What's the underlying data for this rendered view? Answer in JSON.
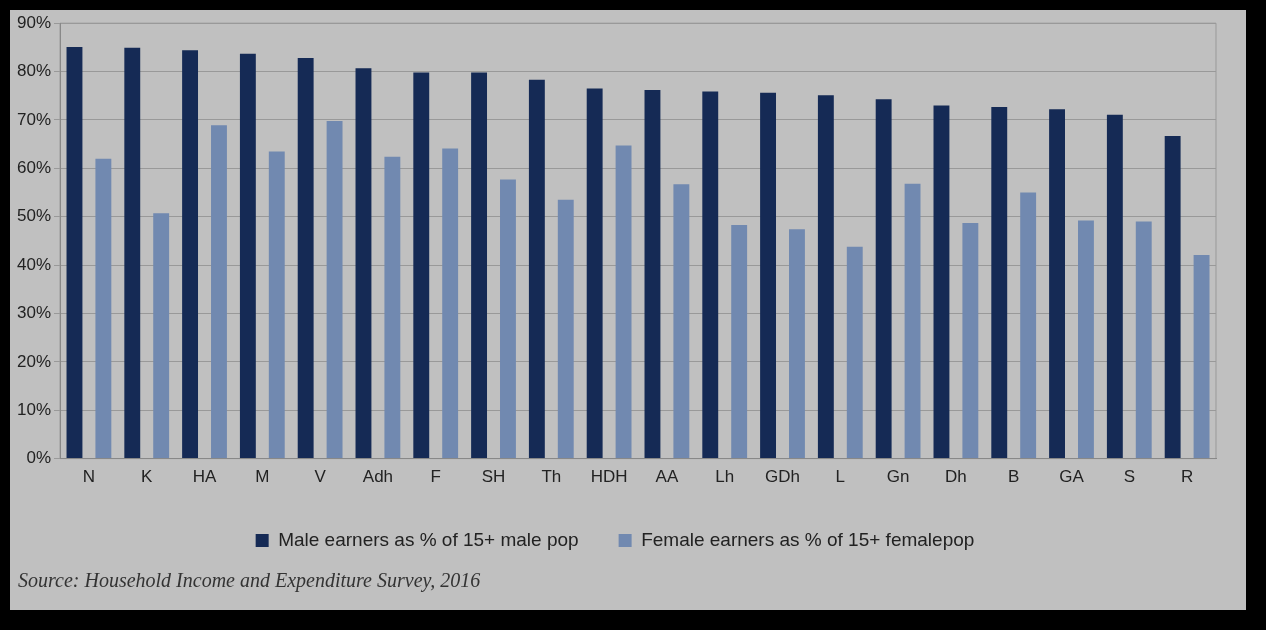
{
  "chart_data": {
    "type": "bar",
    "categories": [
      "N",
      "K",
      "HA",
      "M",
      "V",
      "Adh",
      "F",
      "SH",
      "Th",
      "HDH",
      "AA",
      "Lh",
      "GDh",
      "L",
      "Gn",
      "Dh",
      "B",
      "GA",
      "S",
      "R"
    ],
    "series": [
      {
        "name": "Male earners as % of 15+ male pop",
        "color": "#152a55",
        "values": [
          85.1,
          84.9,
          84.4,
          83.7,
          82.8,
          80.7,
          79.8,
          79.8,
          78.3,
          76.5,
          76.2,
          75.9,
          75.6,
          75.1,
          74.3,
          73.0,
          72.7,
          72.2,
          71.1,
          66.7
        ]
      },
      {
        "name": "Female earners as % of 15+ femalepop",
        "color": "#7189b0",
        "values": [
          62.0,
          50.7,
          68.9,
          63.5,
          69.8,
          62.4,
          64.1,
          57.7,
          53.5,
          64.7,
          56.7,
          48.3,
          47.4,
          43.8,
          56.8,
          48.7,
          55.0,
          49.2,
          49.0,
          42.1
        ]
      }
    ],
    "ylim": [
      0,
      90
    ],
    "yticks": [
      {
        "value": 0,
        "label": "0%"
      },
      {
        "value": 10,
        "label": "10%"
      },
      {
        "value": 20,
        "label": "20%"
      },
      {
        "value": 30,
        "label": "30%"
      },
      {
        "value": 40,
        "label": "40%"
      },
      {
        "value": 50,
        "label": "50%"
      },
      {
        "value": 60,
        "label": "60%"
      },
      {
        "value": 70,
        "label": "70%"
      },
      {
        "value": 80,
        "label": "80%"
      },
      {
        "value": 90,
        "label": "90%"
      }
    ],
    "grid": "y",
    "legend": "bottom",
    "annotations": [
      "Source: Household Income and Expenditure Survey, 2016"
    ]
  }
}
